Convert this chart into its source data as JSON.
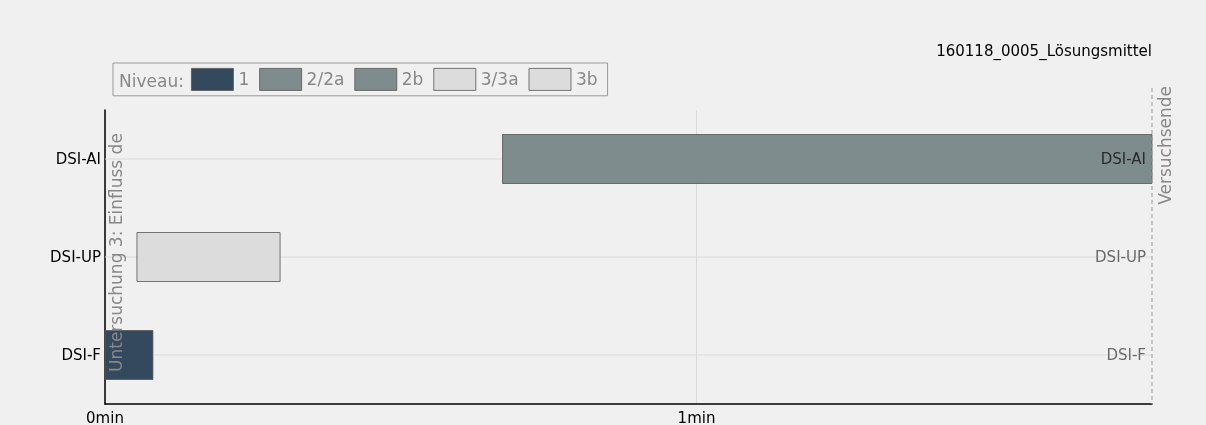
{
  "chart_data": {
    "type": "bar",
    "orientation": "horizontal",
    "title": "160118_0005_Lösungsmittel",
    "categories": [
      "DSI-AI",
      "DSI-UP",
      "DSI-F"
    ],
    "legend_title": "Niveau:",
    "series": [
      {
        "name": "1",
        "color": "#34495e",
        "values": [
          null,
          null,
          0.081
        ],
        "base": [
          null,
          null,
          0
        ]
      },
      {
        "name": "2/2a",
        "color": "#7f8c8d",
        "values": [
          1.098,
          null,
          null
        ],
        "base": [
          0.672,
          null,
          null
        ]
      },
      {
        "name": "2b",
        "color": "#7f8c8d",
        "values": [
          null,
          null,
          null
        ],
        "base": [
          null,
          null,
          null
        ]
      },
      {
        "name": "3/3a",
        "color": "#dcdcdc",
        "values": [
          null,
          0.242,
          null
        ],
        "base": [
          null,
          0.054,
          null
        ]
      },
      {
        "name": "3b",
        "color": "#dcdcdc",
        "values": [
          null,
          null,
          null
        ],
        "base": [
          null,
          null,
          null
        ]
      }
    ],
    "xlim": [
      0,
      1.77
    ],
    "xticks": [
      {
        "value": 0,
        "label": "0min"
      },
      {
        "value": 1,
        "label": "1min"
      }
    ],
    "ref_lines": [
      {
        "axis": "x",
        "value": 1.77,
        "label": "Versuchsende",
        "line_style": "dashed",
        "color": "#999999"
      }
    ],
    "annotations": [
      "Untersuchung 3: Einfluss de",
      "DSI-AI",
      "DSI-UP",
      "DSI-F"
    ],
    "grid": true,
    "legend": "top left"
  }
}
